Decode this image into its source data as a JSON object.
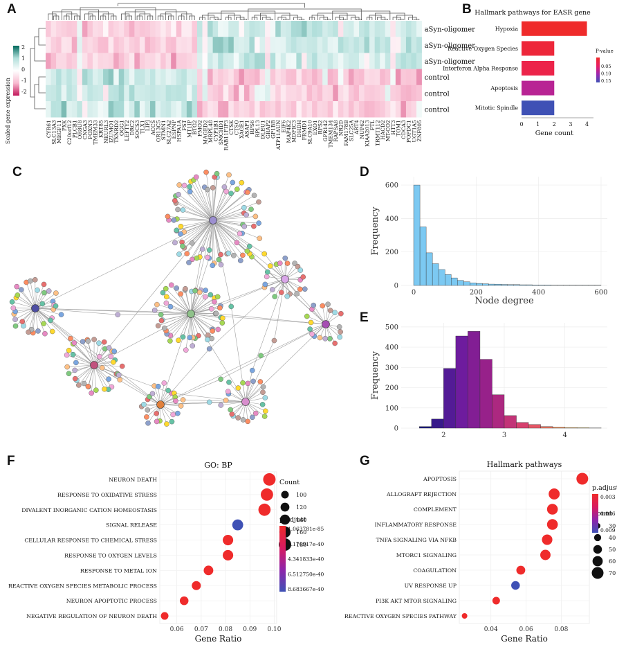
{
  "panel_letters": {
    "a": "A",
    "b": "B",
    "c": "C",
    "d": "D",
    "e": "E",
    "f": "F",
    "g": "G"
  },
  "colors": {
    "teal": "#00695c",
    "white": "#ffffff",
    "magenta": "#c2185b",
    "red": "#ef2b2b",
    "blue": "#3f51b5",
    "purple": "#9c27b0",
    "hist_blue": "#7cc9f2"
  },
  "chart_data": [
    {
      "id": "A",
      "type": "heatmap",
      "legend_title": "Scaled gene expression",
      "legend_ticks": [
        "2",
        "1",
        "0",
        "-1",
        "-2"
      ],
      "rows": [
        "aSyn-oligomer",
        "aSyn-oligomer",
        "aSyn-oligomer",
        "control",
        "control",
        "control"
      ],
      "columns": [
        "CYR61",
        "SLC13A3",
        "MEGF11",
        "PXK",
        "C20orf12",
        "PLCB1",
        "OR8U8",
        "CNGA3",
        "FOXN3",
        "TMEM33",
        "KRT85",
        "NEURL3",
        "IZUMO1",
        "TXNRD2",
        "OGG1",
        "LEFTY2",
        "DRC2",
        "SOCS3",
        "TLX1",
        "LIPJ",
        "ACCS",
        "OR13C5",
        "STMN1",
        "SLC27A2",
        "ESPNP",
        "HSPA1A",
        "FST",
        "MT1IP",
        "BTG2",
        "FMO2",
        "MAGED2",
        "MRPL48",
        "CYP1B1",
        "SMCHD1",
        "RAB11FIP3",
        "CTSK",
        "CTSO",
        "XAGE1",
        "ASAP1",
        "RPS6",
        "RPL13",
        "DLEU1",
        "GRAP2",
        "GP1BB",
        "ATP11AUN",
        "EIF6",
        "MAP4K2",
        "MDFIC3",
        "DHDH",
        "FRMD1",
        "SLC9A10",
        "EXO1",
        "RPS2",
        "GPR142",
        "TMEM134",
        "RAPSA8",
        "NR2D",
        "FAM178B",
        "SLC25A",
        "ART4",
        "NUP62",
        "KIAA2013",
        "FTL",
        "TRMT112",
        "HACD2",
        "MT-CO2",
        "HTT3",
        "TOM1",
        "CDCA3",
        "POPDC1",
        "UGT1A5",
        "ZNF805"
      ],
      "split_index": 29
    },
    {
      "id": "B",
      "type": "bar",
      "title": "Hallmark pathways for EASR gene",
      "xlabel": "Gene count",
      "categories": [
        "Hypoxia",
        "Reactive Oxygen Species",
        "Interferon Alpha Response",
        "Apoptosis",
        "Mitotic Spindle"
      ],
      "values": [
        4,
        2,
        2,
        2,
        2
      ],
      "pvalues": [
        0.04,
        0.05,
        0.06,
        0.1,
        0.15
      ],
      "xlim": [
        0,
        4.4
      ],
      "xticks": [
        "0",
        "1",
        "2",
        "3",
        "4"
      ],
      "legend_title": "P-value",
      "legend_ticks": [
        "0.05",
        "0.10",
        "0.15"
      ]
    },
    {
      "id": "C",
      "type": "network",
      "hubs": [
        {
          "name": "hub-1",
          "color": "#9c8fd0",
          "leaves": 80
        },
        {
          "name": "hub-2",
          "color": "#4f4fa3",
          "leaves": 34
        },
        {
          "name": "hub-3",
          "color": "#8fc28a",
          "leaves": 52
        },
        {
          "name": "hub-4",
          "color": "#d9a6e8",
          "leaves": 22
        },
        {
          "name": "hub-5",
          "color": "#a64fb3",
          "leaves": 20
        },
        {
          "name": "hub-6",
          "color": "#c2527e",
          "leaves": 38
        },
        {
          "name": "hub-7",
          "color": "#e0803c",
          "leaves": 22
        },
        {
          "name": "hub-8",
          "color": "#d88ecd",
          "leaves": 24
        }
      ]
    },
    {
      "id": "D",
      "type": "histogram",
      "xlabel": "Node degree",
      "ylabel": "Frequency",
      "bin_width": 20,
      "bin_start": 0,
      "values": [
        600,
        350,
        195,
        130,
        95,
        65,
        45,
        30,
        22,
        15,
        12,
        10,
        8,
        7,
        6,
        5,
        5,
        4,
        4,
        3,
        3,
        3,
        2,
        2,
        2,
        2,
        2,
        2,
        2,
        2
      ],
      "xlim": [
        -40,
        620
      ],
      "ylim": [
        0,
        650
      ],
      "xticks": [
        0,
        200,
        400,
        600
      ],
      "yticks": [
        0,
        200,
        400,
        600
      ]
    },
    {
      "id": "E",
      "type": "histogram",
      "xlabel": "",
      "ylabel": "Frequency",
      "bin_width": 0.2,
      "bin_start": 1.6,
      "values": [
        8,
        45,
        295,
        455,
        478,
        340,
        165,
        62,
        28,
        18,
        8,
        5,
        3,
        2,
        1
      ],
      "xlim": [
        1.3,
        4.7
      ],
      "ylim": [
        0,
        520
      ],
      "xticks": [
        2,
        3,
        4
      ],
      "yticks": [
        0,
        100,
        200,
        300,
        400,
        500
      ]
    },
    {
      "id": "F",
      "type": "dotplot",
      "title": "GO: BP",
      "xlabel": "Gene Ratio",
      "terms": [
        "NEURON DEATH",
        "RESPONSE TO OXIDATIVE STRESS",
        "DIVALENT INORGANIC CATION HOMEOSTASIS",
        "SIGNAL RELEASE",
        "CELLULAR RESPONSE TO CHEMICAL STRESS",
        "RESPONSE TO OXYGEN LEVELS",
        "RESPONSE TO METAL ION",
        "REACTIVE OXYGEN SPECIES METABOLIC PROCESS",
        "NEURON APOPTOTIC PROCESS",
        "NEGATIVE REGULATION OF NEURON DEATH"
      ],
      "gene_ratio": [
        0.098,
        0.097,
        0.096,
        0.085,
        0.081,
        0.081,
        0.073,
        0.068,
        0.063,
        0.055
      ],
      "count": [
        185,
        183,
        181,
        158,
        150,
        150,
        135,
        125,
        118,
        100
      ],
      "p_adjust": [
        1.1e-85,
        3e-80,
        6e-79,
        8.5e-40,
        2e-70,
        2e-70,
        5e-68,
        4e-67,
        6e-60,
        5e-58
      ],
      "xlim": [
        0.053,
        0.101
      ],
      "xticks": [
        0.06,
        0.07,
        0.08,
        0.09,
        0.1
      ],
      "xtick_labels": [
        "0.06",
        "0.07",
        "0.08",
        "0.09",
        "0.10"
      ],
      "count_legend_title": "Count",
      "count_legend": [
        "100",
        "120",
        "140",
        "160",
        "180"
      ],
      "padj_legend_title": "p.adjust",
      "padj_legend": [
        "1.063781e-85",
        "2.170917e-40",
        "4.341833e-40",
        "6.512750e-40",
        "8.683667e-40"
      ]
    },
    {
      "id": "G",
      "type": "dotplot",
      "title": "Hallmark pathways",
      "xlabel": "Gene Ratio",
      "terms": [
        "APOPTOSIS",
        "ALLOGRAFT REJECTION",
        "COMPLEMENT",
        "INFLAMMATORY RESPONSE",
        "TNFA SIGNALING VIA NFKB",
        "MTORC1 SIGNALING",
        "COAGULATION",
        "UV RESPONSE UP",
        "PI3K AKT MTOR SIGNALING",
        "REACTIVE OXYGEN SPECIES PATHWAY"
      ],
      "gene_ratio": [
        0.092,
        0.076,
        0.075,
        0.075,
        0.072,
        0.071,
        0.057,
        0.054,
        0.043,
        0.025
      ],
      "count": [
        74,
        68,
        66,
        66,
        63,
        62,
        50,
        48,
        39,
        22
      ],
      "p_adjust": [
        0.0002,
        0.0004,
        0.0005,
        0.0005,
        0.0007,
        0.0008,
        0.001,
        0.0115,
        0.0012,
        0.0015
      ],
      "xlim": [
        0.022,
        0.096
      ],
      "xticks": [
        0.04,
        0.06,
        0.08
      ],
      "xtick_labels": [
        "0.04",
        "0.06",
        "0.08"
      ],
      "count_legend_title": "Count",
      "count_legend": [
        "30",
        "40",
        "50",
        "60",
        "70"
      ],
      "padj_legend_title": "p.adjust",
      "padj_legend": [
        "0.003",
        "0.006",
        "0.009"
      ]
    }
  ]
}
